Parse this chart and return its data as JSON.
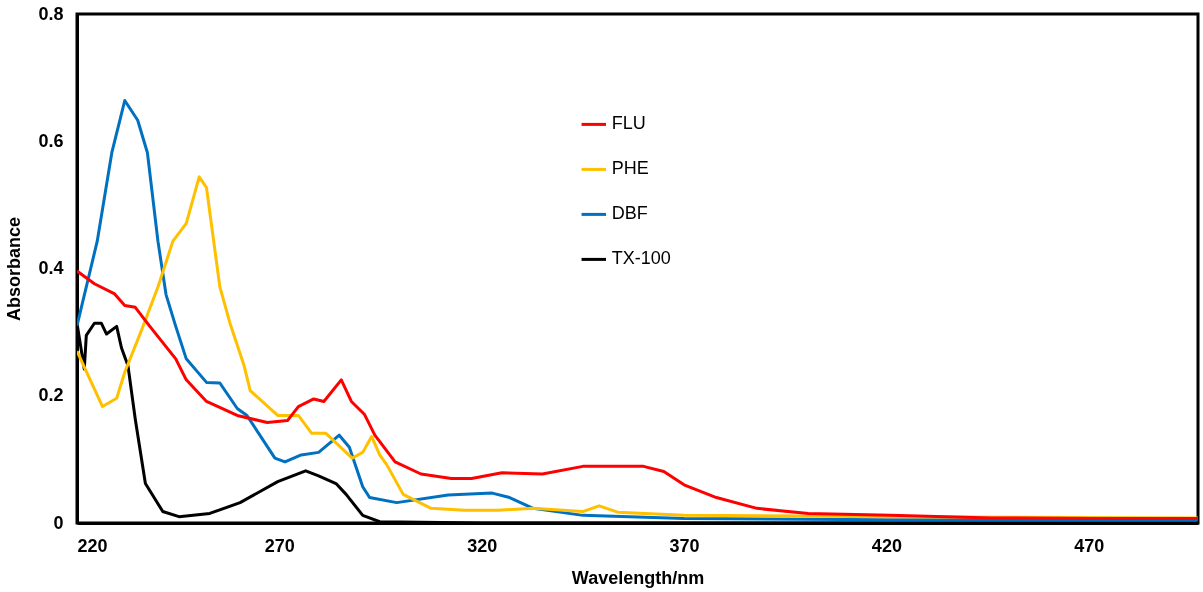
{
  "chart_data": {
    "type": "line",
    "xlabel": "Wavelength/nm",
    "ylabel": "Absorbance",
    "xlim": [
      220,
      497
    ],
    "xticks": [
      220,
      270,
      320,
      370,
      420,
      470
    ],
    "ylim": [
      0,
      0.8
    ],
    "yticks": [
      0,
      0.2,
      0.4,
      0.6,
      0.8
    ],
    "grid": false,
    "legend": "top",
    "marker": "none",
    "line_style": "solid",
    "series": [
      {
        "name": "FLU",
        "color": "#ff0000",
        "x": [
          220,
          224.3,
          229.3,
          231.8,
          234.4,
          238,
          244.4,
          247,
          252,
          259.6,
          267,
          272,
          274.7,
          278.5,
          281,
          285.3,
          287.8,
          291,
          293.6,
          298.6,
          305,
          312.5,
          317.5,
          325,
          335,
          345,
          350,
          360,
          365,
          370,
          378,
          388,
          400.7,
          421,
          446,
          471,
          497
        ],
        "values": [
          0.396,
          0.376,
          0.36,
          0.342,
          0.339,
          0.309,
          0.258,
          0.225,
          0.191,
          0.169,
          0.158,
          0.161,
          0.183,
          0.195,
          0.191,
          0.225,
          0.191,
          0.171,
          0.138,
          0.096,
          0.077,
          0.07,
          0.07,
          0.079,
          0.077,
          0.089,
          0.089,
          0.089,
          0.081,
          0.06,
          0.04,
          0.023,
          0.015,
          0.012,
          0.008,
          0.007,
          0.007
        ]
      },
      {
        "name": "PHE",
        "color": "#ffc000",
        "x": [
          220,
          226.3,
          229.8,
          231.8,
          236,
          240,
          243.7,
          247,
          250.2,
          252,
          255.3,
          257.8,
          261.3,
          262.8,
          269.6,
          274.7,
          278,
          281.5,
          288,
          290.6,
          292.8,
          294.8,
          296.6,
          300.6,
          307.5,
          315.8,
          324,
          332.7,
          345,
          349,
          353.6,
          370,
          420,
          497
        ],
        "values": [
          0.27,
          0.183,
          0.196,
          0.237,
          0.304,
          0.371,
          0.443,
          0.471,
          0.544,
          0.527,
          0.371,
          0.314,
          0.247,
          0.208,
          0.169,
          0.169,
          0.141,
          0.141,
          0.102,
          0.111,
          0.136,
          0.107,
          0.091,
          0.045,
          0.023,
          0.02,
          0.02,
          0.023,
          0.018,
          0.027,
          0.017,
          0.012,
          0.01,
          0.008
        ]
      },
      {
        "name": "DBF",
        "color": "#0070c0",
        "x": [
          220,
          225,
          228.6,
          231.8,
          235,
          237.4,
          240,
          242,
          244.4,
          247,
          252,
          255.3,
          259.6,
          262,
          268.9,
          271.4,
          275.4,
          279.7,
          284.8,
          287.3,
          290.6,
          292.3,
          299,
          311.7,
          322.6,
          326.9,
          332.7,
          345,
          370,
          420,
          497
        ],
        "values": [
          0.31,
          0.443,
          0.582,
          0.664,
          0.633,
          0.582,
          0.443,
          0.359,
          0.309,
          0.258,
          0.221,
          0.22,
          0.18,
          0.169,
          0.102,
          0.096,
          0.107,
          0.111,
          0.138,
          0.119,
          0.057,
          0.04,
          0.032,
          0.044,
          0.047,
          0.04,
          0.023,
          0.012,
          0.007,
          0.005,
          0.005
        ]
      },
      {
        "name": "TX-100",
        "color": "#000000",
        "x": [
          220,
          221.8,
          222.3,
          224.3,
          226,
          227.3,
          229.8,
          231,
          232.6,
          234.4,
          236.9,
          241.2,
          245.2,
          252.8,
          260.3,
          269.6,
          276.5,
          279.7,
          284,
          286.5,
          290.6,
          294.8,
          320,
          400,
          497
        ],
        "values": [
          0.314,
          0.242,
          0.295,
          0.314,
          0.314,
          0.297,
          0.309,
          0.275,
          0.247,
          0.163,
          0.062,
          0.018,
          0.01,
          0.015,
          0.032,
          0.065,
          0.082,
          0.074,
          0.062,
          0.045,
          0.012,
          0.002,
          0,
          0,
          0
        ]
      }
    ]
  }
}
